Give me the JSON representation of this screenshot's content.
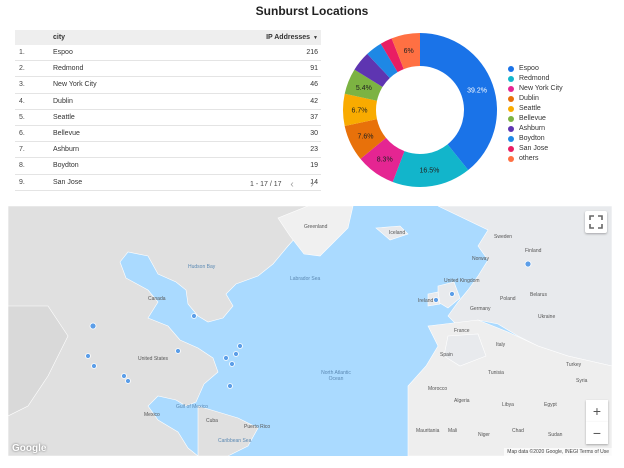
{
  "title": "Sunburst Locations",
  "table": {
    "col_city": "city",
    "col_value": "IP Addresses",
    "sort_icon": "▼",
    "rows": [
      {
        "n": "1.",
        "city": "Espoo",
        "value": "216"
      },
      {
        "n": "2.",
        "city": "Redmond",
        "value": "91"
      },
      {
        "n": "3.",
        "city": "New York City",
        "value": "46"
      },
      {
        "n": "4.",
        "city": "Dublin",
        "value": "42"
      },
      {
        "n": "5.",
        "city": "Seattle",
        "value": "37"
      },
      {
        "n": "6.",
        "city": "Bellevue",
        "value": "30"
      },
      {
        "n": "7.",
        "city": "Ashburn",
        "value": "23"
      },
      {
        "n": "8.",
        "city": "Boydton",
        "value": "19"
      },
      {
        "n": "9.",
        "city": "San Jose",
        "value": "14"
      }
    ],
    "pager_text": "1 - 17 / 17",
    "prev_icon": "‹",
    "next_icon": "›"
  },
  "chart_data": {
    "type": "pie",
    "donut": true,
    "labels": [
      "Espoo",
      "Redmond",
      "New York City",
      "Dublin",
      "Seattle",
      "Bellevue",
      "Ashburn",
      "Boydton",
      "San Jose",
      "others"
    ],
    "values": [
      39.2,
      16.5,
      8.3,
      7.6,
      6.7,
      5.4,
      4.2,
      3.5,
      2.5,
      6.0
    ],
    "data_labels": [
      "39.2%",
      "16.5%",
      "8.3%",
      "7.6%",
      "6.7%",
      "5.4%",
      "",
      "",
      "",
      "6%"
    ],
    "colors": [
      "#1a73e8",
      "#12b5cb",
      "#e52592",
      "#e8710a",
      "#f9ab00",
      "#7cb342",
      "#5e35b1",
      "#1e88e5",
      "#e91e63",
      "#ff7043"
    ],
    "legend_position": "right"
  },
  "map": {
    "labels": {
      "greenland": "Greenland",
      "iceland": "Iceland",
      "hudson_bay": "Hudson Bay",
      "labrador_sea": "Labrador Sea",
      "canada": "Canada",
      "sweden": "Sweden",
      "finland": "Finland",
      "norway": "Norway",
      "uk": "United Kingdom",
      "ireland": "Ireland",
      "poland": "Poland",
      "germany": "Germany",
      "belarus": "Belarus",
      "ukraine": "Ukraine",
      "france": "France",
      "italy": "Italy",
      "spain": "Spain",
      "us": "United States",
      "atlantic": "North Atlantic Ocean",
      "turkey": "Turkey",
      "mexico": "Mexico",
      "gulf": "Gulf of Mexico",
      "cuba": "Cuba",
      "morocco": "Morocco",
      "algeria": "Algeria",
      "libya": "Libya",
      "egypt": "Egypt",
      "mali": "Mali",
      "niger": "Niger",
      "mauritania": "Mauritania",
      "chad": "Chad",
      "sudan": "Sudan",
      "caribbean": "Caribbean Sea",
      "puerto_rico": "Puerto Rico",
      "tunisia": "Tunisia",
      "syria": "Syria"
    },
    "zoom_in": "+",
    "zoom_out": "−",
    "google_logo": "Google",
    "attribution": "Map data ©2020 Google, INEGI    Terms of Use"
  }
}
